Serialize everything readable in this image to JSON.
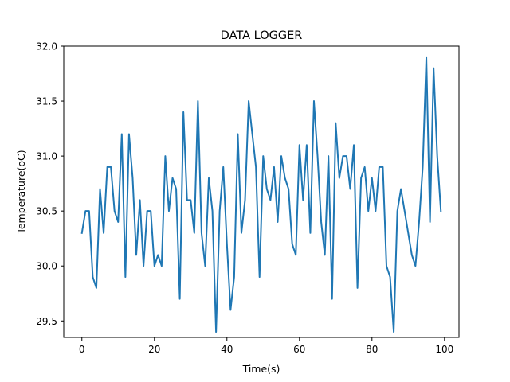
{
  "chart_data": {
    "type": "line",
    "title": "DATA LOGGER",
    "xlabel": "Time(s)",
    "ylabel": "Temperature(oC)",
    "xlim": [
      -5,
      104
    ],
    "ylim": [
      29.35,
      32.0
    ],
    "xticks": [
      0,
      20,
      40,
      60,
      80,
      100
    ],
    "yticks": [
      29.5,
      30.0,
      30.5,
      31.0,
      31.5,
      32.0
    ],
    "xtick_labels": [
      "0",
      "20",
      "40",
      "60",
      "80",
      "100"
    ],
    "ytick_labels": [
      "29.5",
      "30.0",
      "30.5",
      "31.0",
      "31.5",
      "32.0"
    ],
    "grid": false,
    "line_color": "#1f77b4",
    "series": [
      {
        "x": [
          0,
          1,
          2,
          3,
          4,
          5,
          6,
          7,
          8,
          9,
          10,
          11,
          12,
          13,
          14,
          15,
          16,
          17,
          18,
          19,
          20,
          21,
          22,
          23,
          24,
          25,
          26,
          27,
          28,
          29,
          30,
          31,
          32,
          33,
          34,
          35,
          36,
          37,
          38,
          39,
          40,
          41,
          42,
          43,
          44,
          45,
          46,
          47,
          48,
          49,
          50,
          51,
          52,
          53,
          54,
          55,
          56,
          57,
          58,
          59,
          60,
          61,
          62,
          63,
          64,
          65,
          66,
          67,
          68,
          69,
          70,
          71,
          72,
          73,
          74,
          75,
          76,
          77,
          78,
          79,
          80,
          81,
          82,
          83,
          84,
          85,
          86,
          87,
          88,
          89,
          90,
          91,
          92,
          93,
          94,
          95,
          96,
          97,
          98,
          99
        ],
        "y": [
          30.3,
          30.5,
          30.5,
          29.9,
          29.8,
          30.7,
          30.3,
          30.9,
          30.9,
          30.5,
          30.4,
          31.2,
          29.9,
          31.2,
          30.8,
          30.1,
          30.6,
          30.0,
          30.5,
          30.5,
          30.0,
          30.1,
          30.0,
          31.0,
          30.5,
          30.8,
          30.7,
          29.7,
          31.4,
          30.6,
          30.6,
          30.3,
          31.5,
          30.3,
          30.0,
          30.8,
          30.5,
          29.4,
          30.5,
          30.9,
          30.2,
          29.6,
          29.9,
          31.2,
          30.3,
          30.6,
          31.5,
          31.2,
          30.9,
          29.9,
          31.0,
          30.7,
          30.6,
          30.9,
          30.4,
          31.0,
          30.8,
          30.7,
          30.2,
          30.1,
          31.1,
          30.6,
          31.1,
          30.3,
          31.5,
          31.0,
          30.4,
          30.1,
          31.0,
          29.7,
          31.3,
          30.8,
          31.0,
          31.0,
          30.7,
          31.1,
          29.8,
          30.8,
          30.9,
          30.5,
          30.8,
          30.5,
          30.9,
          30.9,
          30.0,
          29.9,
          29.4,
          30.5,
          30.7,
          30.5,
          30.3,
          30.1,
          30.0,
          30.4,
          30.9,
          31.9,
          30.4,
          31.8,
          31.0,
          30.5
        ]
      }
    ]
  }
}
